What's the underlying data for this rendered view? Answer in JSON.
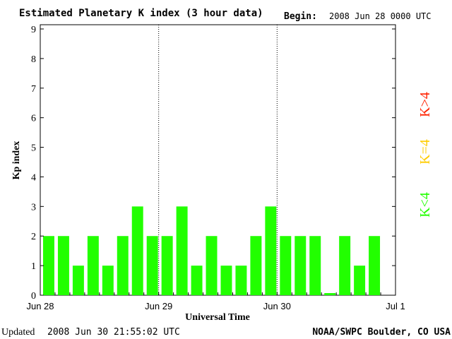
{
  "header": {
    "title": "Estimated Planetary K index (3 hour data)",
    "begin_label": "Begin:",
    "begin_value": "2008 Jun 28 0000 UTC"
  },
  "footer": {
    "updated_label": "Updated",
    "updated_value": "2008 Jun 30 21:55:02 UTC",
    "source": "NOAA/SWPC Boulder, CO USA"
  },
  "legend": {
    "high": "K>4",
    "equal": "K=4",
    "low": "K<4"
  },
  "colors": {
    "low": "#22ff00",
    "equal": "#ffcc00",
    "high": "#ff2200",
    "axis": "#000000"
  },
  "chart_data": {
    "type": "bar",
    "title": "Estimated Planetary K index (3 hour data)",
    "xlabel": "Universal Time",
    "ylabel": "Kp index",
    "ylim": [
      0,
      9
    ],
    "yticks": [
      "0",
      "1",
      "2",
      "3",
      "4",
      "5",
      "6",
      "7",
      "8",
      "9"
    ],
    "xticks": [
      "Jun 28",
      "Jun 29",
      "Jun 30",
      "Jul 1"
    ],
    "interval_hours": 3,
    "day_separators": [
      "Jun 29",
      "Jun 30"
    ],
    "values": [
      2,
      2,
      1,
      2,
      1,
      2,
      3,
      2,
      2,
      3,
      1,
      2,
      1,
      1,
      2,
      3,
      2,
      2,
      2,
      0,
      2,
      1,
      2
    ]
  }
}
